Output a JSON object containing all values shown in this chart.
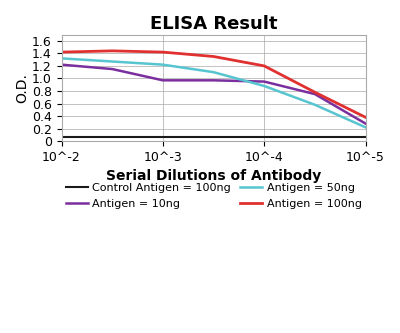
{
  "title": "ELISA Result",
  "ylabel": "O.D.",
  "xlabel": "Serial Dilutions of Antibody",
  "x_tick_labels": [
    "10^-2",
    "10^-3",
    "10^-4",
    "10^-5"
  ],
  "ylim": [
    0,
    1.7
  ],
  "y_ticks": [
    0,
    0.2,
    0.4,
    0.6,
    0.8,
    1.0,
    1.2,
    1.4,
    1.6
  ],
  "xlim_log": [
    -2,
    -5
  ],
  "lines": {
    "control": {
      "color": "#1a1a1a",
      "label": "Control Antigen = 100ng",
      "x": [
        -2,
        -3,
        -4,
        -5
      ],
      "y": [
        0.07,
        0.07,
        0.07,
        0.07
      ]
    },
    "antigen10": {
      "color": "#7b2f9e",
      "label": "Antigen = 10ng",
      "x": [
        -2,
        -2.5,
        -3,
        -3.5,
        -4,
        -4.5,
        -5
      ],
      "y": [
        1.22,
        1.15,
        0.97,
        0.97,
        0.95,
        0.75,
        0.28
      ]
    },
    "antigen50": {
      "color": "#56c5d0",
      "label": "Antigen = 50ng",
      "x": [
        -2,
        -2.5,
        -3,
        -3.5,
        -4,
        -4.5,
        -5
      ],
      "y": [
        1.32,
        1.27,
        1.22,
        1.1,
        0.88,
        0.58,
        0.22
      ]
    },
    "antigen100": {
      "color": "#e03030",
      "label": "Antigen = 100ng",
      "x": [
        -2,
        -2.5,
        -3,
        -3.5,
        -4,
        -4.5,
        -5
      ],
      "y": [
        1.42,
        1.44,
        1.42,
        1.35,
        1.2,
        0.78,
        0.38
      ]
    }
  },
  "background_color": "#ffffff",
  "grid_color": "#aaaaaa",
  "title_fontsize": 13,
  "label_fontsize": 9,
  "legend_fontsize": 8
}
